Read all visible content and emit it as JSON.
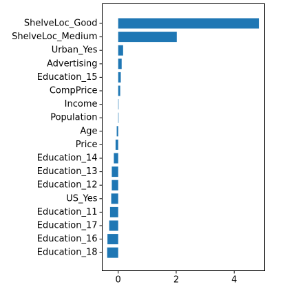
{
  "chart_data": {
    "type": "bar",
    "orientation": "horizontal",
    "title": "",
    "xlabel": "",
    "ylabel": "",
    "categories": [
      "ShelveLoc_Good",
      "ShelveLoc_Medium",
      "Urban_Yes",
      "Advertising",
      "Education_15",
      "CompPrice",
      "Income",
      "Population",
      "Age",
      "Price",
      "Education_14",
      "Education_13",
      "Education_12",
      "US_Yes",
      "Education_11",
      "Education_17",
      "Education_16",
      "Education_18"
    ],
    "values": [
      4.85,
      2.02,
      0.17,
      0.12,
      0.09,
      0.07,
      0.01,
      0.0,
      -0.05,
      -0.09,
      -0.15,
      -0.22,
      -0.22,
      -0.24,
      -0.28,
      -0.31,
      -0.37,
      -0.38
    ],
    "xlim": [
      -0.55,
      5.05
    ],
    "xticks": [
      0,
      2,
      4
    ],
    "grid": false,
    "colors": {
      "bar": "#1f77b4",
      "axis": "#000000",
      "background": "#ffffff"
    }
  }
}
